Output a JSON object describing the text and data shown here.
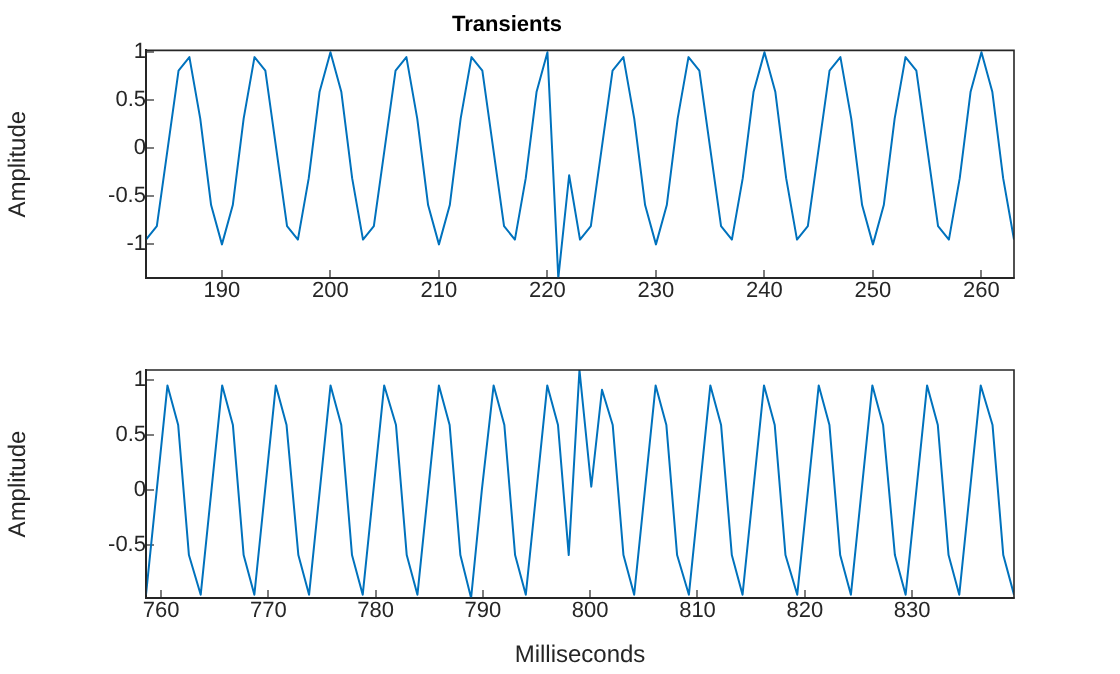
{
  "chart_data": [
    {
      "type": "line",
      "title": "Transients",
      "ylabel": "Amplitude",
      "xlim": [
        183,
        263
      ],
      "ylim": [
        -1.35,
        1.02
      ],
      "xticks": [
        190,
        200,
        210,
        220,
        230,
        240,
        250,
        260
      ],
      "yticks": [
        -1,
        -0.5,
        0,
        0.5,
        1
      ],
      "grid": false,
      "legend": false,
      "marker": "none",
      "line_style": "solid",
      "series": [
        {
          "color": "#0072bd",
          "x": [
            183,
            184,
            185,
            186,
            187,
            188,
            189,
            190,
            191,
            192,
            193,
            194,
            195,
            196,
            197,
            198,
            199,
            200,
            201,
            202,
            203,
            204,
            205,
            206,
            207,
            208,
            209,
            210,
            211,
            212,
            213,
            214,
            215,
            216,
            217,
            218,
            219,
            220,
            221,
            222,
            223,
            224,
            225,
            226,
            227,
            228,
            229,
            230,
            231,
            232,
            233,
            234,
            235,
            236,
            237,
            238,
            239,
            240,
            241,
            242,
            243,
            244,
            245,
            246,
            247,
            248,
            249,
            250,
            251,
            252,
            253,
            254,
            255,
            256,
            257,
            258,
            259,
            260,
            261,
            262,
            263
          ],
          "values": [
            -0.95,
            -0.81,
            0,
            0.81,
            0.95,
            0.31,
            -0.59,
            -1,
            -0.59,
            0.31,
            0.95,
            0.81,
            0,
            -0.81,
            -0.95,
            -0.31,
            0.59,
            1,
            0.59,
            -0.31,
            -0.95,
            -0.81,
            0,
            0.81,
            0.95,
            0.31,
            -0.59,
            -1,
            -0.59,
            0.31,
            0.95,
            0.81,
            0,
            -0.81,
            -0.95,
            -0.31,
            0.59,
            1,
            -1.35,
            -0.28,
            -0.95,
            -0.81,
            0,
            0.81,
            0.95,
            0.31,
            -0.59,
            -1,
            -0.59,
            0.31,
            0.95,
            0.81,
            0,
            -0.81,
            -0.95,
            -0.31,
            0.59,
            1,
            0.59,
            -0.31,
            -0.95,
            -0.81,
            0,
            0.81,
            0.95,
            0.31,
            -0.59,
            -1,
            -0.59,
            0.31,
            0.95,
            0.81,
            0,
            -0.81,
            -0.95,
            -0.31,
            0.59,
            1,
            0.59,
            -0.31,
            -0.95
          ]
        }
      ]
    },
    {
      "type": "line",
      "xlabel": "Milliseconds",
      "ylabel": "Amplitude",
      "xlim": [
        758.6,
        839.5
      ],
      "ylim": [
        -0.98,
        1.09
      ],
      "xticks": [
        760,
        770,
        780,
        790,
        800,
        810,
        820,
        830
      ],
      "yticks": [
        -0.5,
        0,
        0.5,
        1
      ],
      "grid": false,
      "legend": false,
      "marker": "none",
      "line_style": "solid",
      "series": [
        {
          "color": "#0072bd",
          "x": [
            758.6,
            759.6,
            760.6,
            761.6,
            762.6,
            763.7,
            764.7,
            765.7,
            766.7,
            767.7,
            768.7,
            769.7,
            770.7,
            771.7,
            772.8,
            773.8,
            774.8,
            775.8,
            776.8,
            777.8,
            778.8,
            779.8,
            780.8,
            781.9,
            782.9,
            783.9,
            784.9,
            785.9,
            786.9,
            787.9,
            788.9,
            789.9,
            791.0,
            792.0,
            793.0,
            794.0,
            795.0,
            796.0,
            797.0,
            798.0,
            799.0,
            800.1,
            801.1,
            802.1,
            803.1,
            804.1,
            805.1,
            806.1,
            807.1,
            808.1,
            809.2,
            810.2,
            811.2,
            812.2,
            813.2,
            814.2,
            815.2,
            816.2,
            817.2,
            818.2,
            819.3,
            820.3,
            821.3,
            822.3,
            823.3,
            824.3,
            825.3,
            826.3,
            827.3,
            828.4,
            829.4,
            830.4,
            831.4,
            832.4,
            833.4,
            834.4,
            835.4,
            836.4,
            837.5,
            838.5,
            839.5
          ],
          "values": [
            -0.95,
            0,
            0.95,
            0.59,
            -0.59,
            -0.95,
            0,
            0.95,
            0.59,
            -0.59,
            -0.95,
            0,
            0.95,
            0.59,
            -0.59,
            -0.95,
            0,
            0.95,
            0.59,
            -0.59,
            -0.95,
            0,
            0.95,
            0.59,
            -0.59,
            -0.95,
            0,
            0.95,
            0.59,
            -0.59,
            -0.98,
            0,
            0.95,
            0.59,
            -0.59,
            -0.95,
            0,
            0.95,
            0.59,
            -0.59,
            1.09,
            0.03,
            0.91,
            0.59,
            -0.59,
            -0.95,
            0,
            0.95,
            0.59,
            -0.59,
            -0.95,
            0,
            0.95,
            0.59,
            -0.59,
            -0.95,
            0,
            0.95,
            0.59,
            -0.59,
            -0.95,
            0,
            0.95,
            0.59,
            -0.59,
            -0.95,
            0,
            0.95,
            0.59,
            -0.59,
            -0.95,
            0,
            0.95,
            0.59,
            -0.59,
            -0.95,
            0,
            0.95,
            0.59,
            -0.59,
            -0.95
          ]
        }
      ]
    }
  ]
}
